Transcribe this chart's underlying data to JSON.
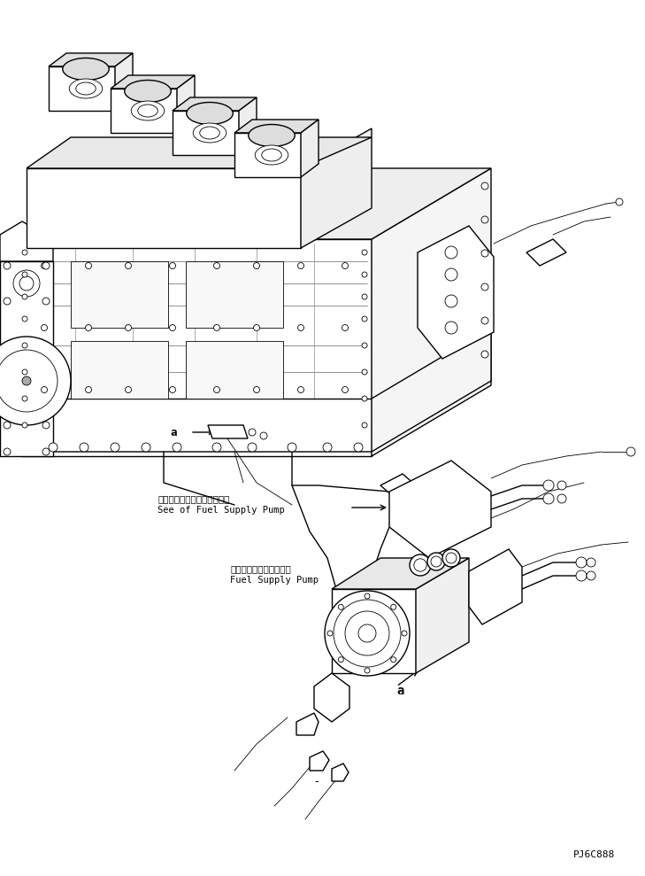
{
  "figure_width": 7.29,
  "figure_height": 9.89,
  "dpi": 100,
  "bg_color": "#ffffff",
  "part_number": "PJ6C888",
  "text_see_fuel_jp": "フェエルサブライボンブ参照",
  "text_see_fuel_en": "See of Fuel Supply Pump",
  "text_fuel_jp": "フェエルサブライボンプ",
  "text_fuel_en": "Fuel Supply Pump",
  "dash_marker": "-",
  "line_color": "#000000",
  "text_color": "#000000",
  "lw_main": 1.0,
  "lw_thin": 0.6,
  "lw_thick": 1.4
}
